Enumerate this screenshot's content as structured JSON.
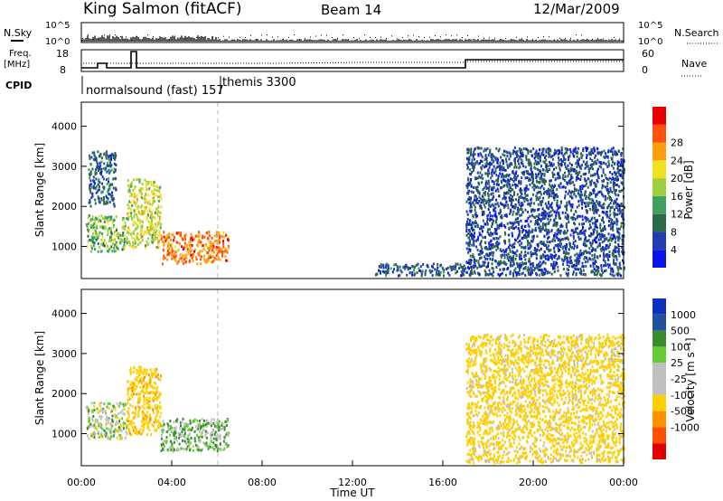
{
  "header": {
    "station": "King Salmon (fitACF)",
    "beam": "Beam 14",
    "date": "12/Mar/2009"
  },
  "summary": {
    "nsky_label": "N.Sky",
    "nsky_ticks": [
      "10^5",
      "10^0"
    ],
    "nsearch_label": "N.Search",
    "nsearch_ticks": [
      "10^5",
      "10^0"
    ],
    "freq_label": "Freq.",
    "freq_unit": "[MHz]",
    "freq_ticks": [
      "18",
      "8"
    ],
    "nave_label": "Nave",
    "nave_ticks": [
      "60",
      "0"
    ],
    "cpid_label": "CPID",
    "cpid_segments": [
      {
        "name": "normalsound (fast) 157"
      },
      {
        "name": "themis 3300"
      }
    ]
  },
  "colors": {
    "power_scale": [
      "#0a14e6",
      "#1f3fb0",
      "#2d6a46",
      "#3fa060",
      "#9fcf3f",
      "#f0e020",
      "#ff9d10",
      "#ff5010",
      "#e80000"
    ],
    "velocity_scale": [
      "#1030c0",
      "#2050a0",
      "#3a8a30",
      "#66cc33",
      "#c0c0c0",
      "#c0c0c0",
      "#ffd000",
      "#ff9000",
      "#ff5000",
      "#e00000"
    ]
  },
  "chart_data": [
    {
      "type": "heatmap",
      "name": "Power",
      "xlabel": "",
      "ylabel": "Slant Range [km]",
      "xlim": [
        0,
        24
      ],
      "ylim": [
        200,
        4600
      ],
      "y_ticks": [
        1000,
        2000,
        3000,
        4000
      ],
      "colorbar_label": "Power [dB]",
      "colorbar_ticks": [
        "4",
        "8",
        "12",
        "16",
        "20",
        "24",
        "28"
      ],
      "regions": [
        {
          "x": [
            0.2,
            2.0
          ],
          "y": [
            900,
            1800
          ],
          "level": 14
        },
        {
          "x": [
            2.0,
            3.5
          ],
          "y": [
            1000,
            2700
          ],
          "level": 18
        },
        {
          "x": [
            3.5,
            6.5
          ],
          "y": [
            600,
            1400
          ],
          "level": 26
        },
        {
          "x": [
            0.3,
            1.5
          ],
          "y": [
            2000,
            3400
          ],
          "level": 6
        },
        {
          "x": [
            13.0,
            17.0
          ],
          "y": [
            300,
            600
          ],
          "level": 6
        },
        {
          "x": [
            17.0,
            24.0
          ],
          "y": [
            300,
            3500
          ],
          "level": 5
        }
      ]
    },
    {
      "type": "heatmap",
      "name": "Velocity",
      "xlabel": "Time UT",
      "ylabel": "Slant Range [km]",
      "xlim": [
        0,
        24
      ],
      "ylim": [
        200,
        4600
      ],
      "x_ticks": [
        "00:00",
        "04:00",
        "08:00",
        "12:00",
        "16:00",
        "20:00",
        "00:00"
      ],
      "y_ticks": [
        1000,
        2000,
        3000,
        4000
      ],
      "colorbar_label": "Velocity [m s⁻¹]",
      "colorbar_ticks": [
        "1000",
        "500",
        "100",
        "25",
        "-25",
        "-100",
        "-500",
        "-1000"
      ],
      "regions": [
        {
          "x": [
            0.2,
            2.0
          ],
          "y": [
            900,
            1800
          ],
          "velocity": 0
        },
        {
          "x": [
            2.0,
            3.5
          ],
          "y": [
            1000,
            2700
          ],
          "velocity": -400
        },
        {
          "x": [
            3.5,
            6.5
          ],
          "y": [
            600,
            1400
          ],
          "velocity": 80
        },
        {
          "x": [
            17.0,
            24.0
          ],
          "y": [
            300,
            3500
          ],
          "velocity": -200
        }
      ]
    }
  ]
}
